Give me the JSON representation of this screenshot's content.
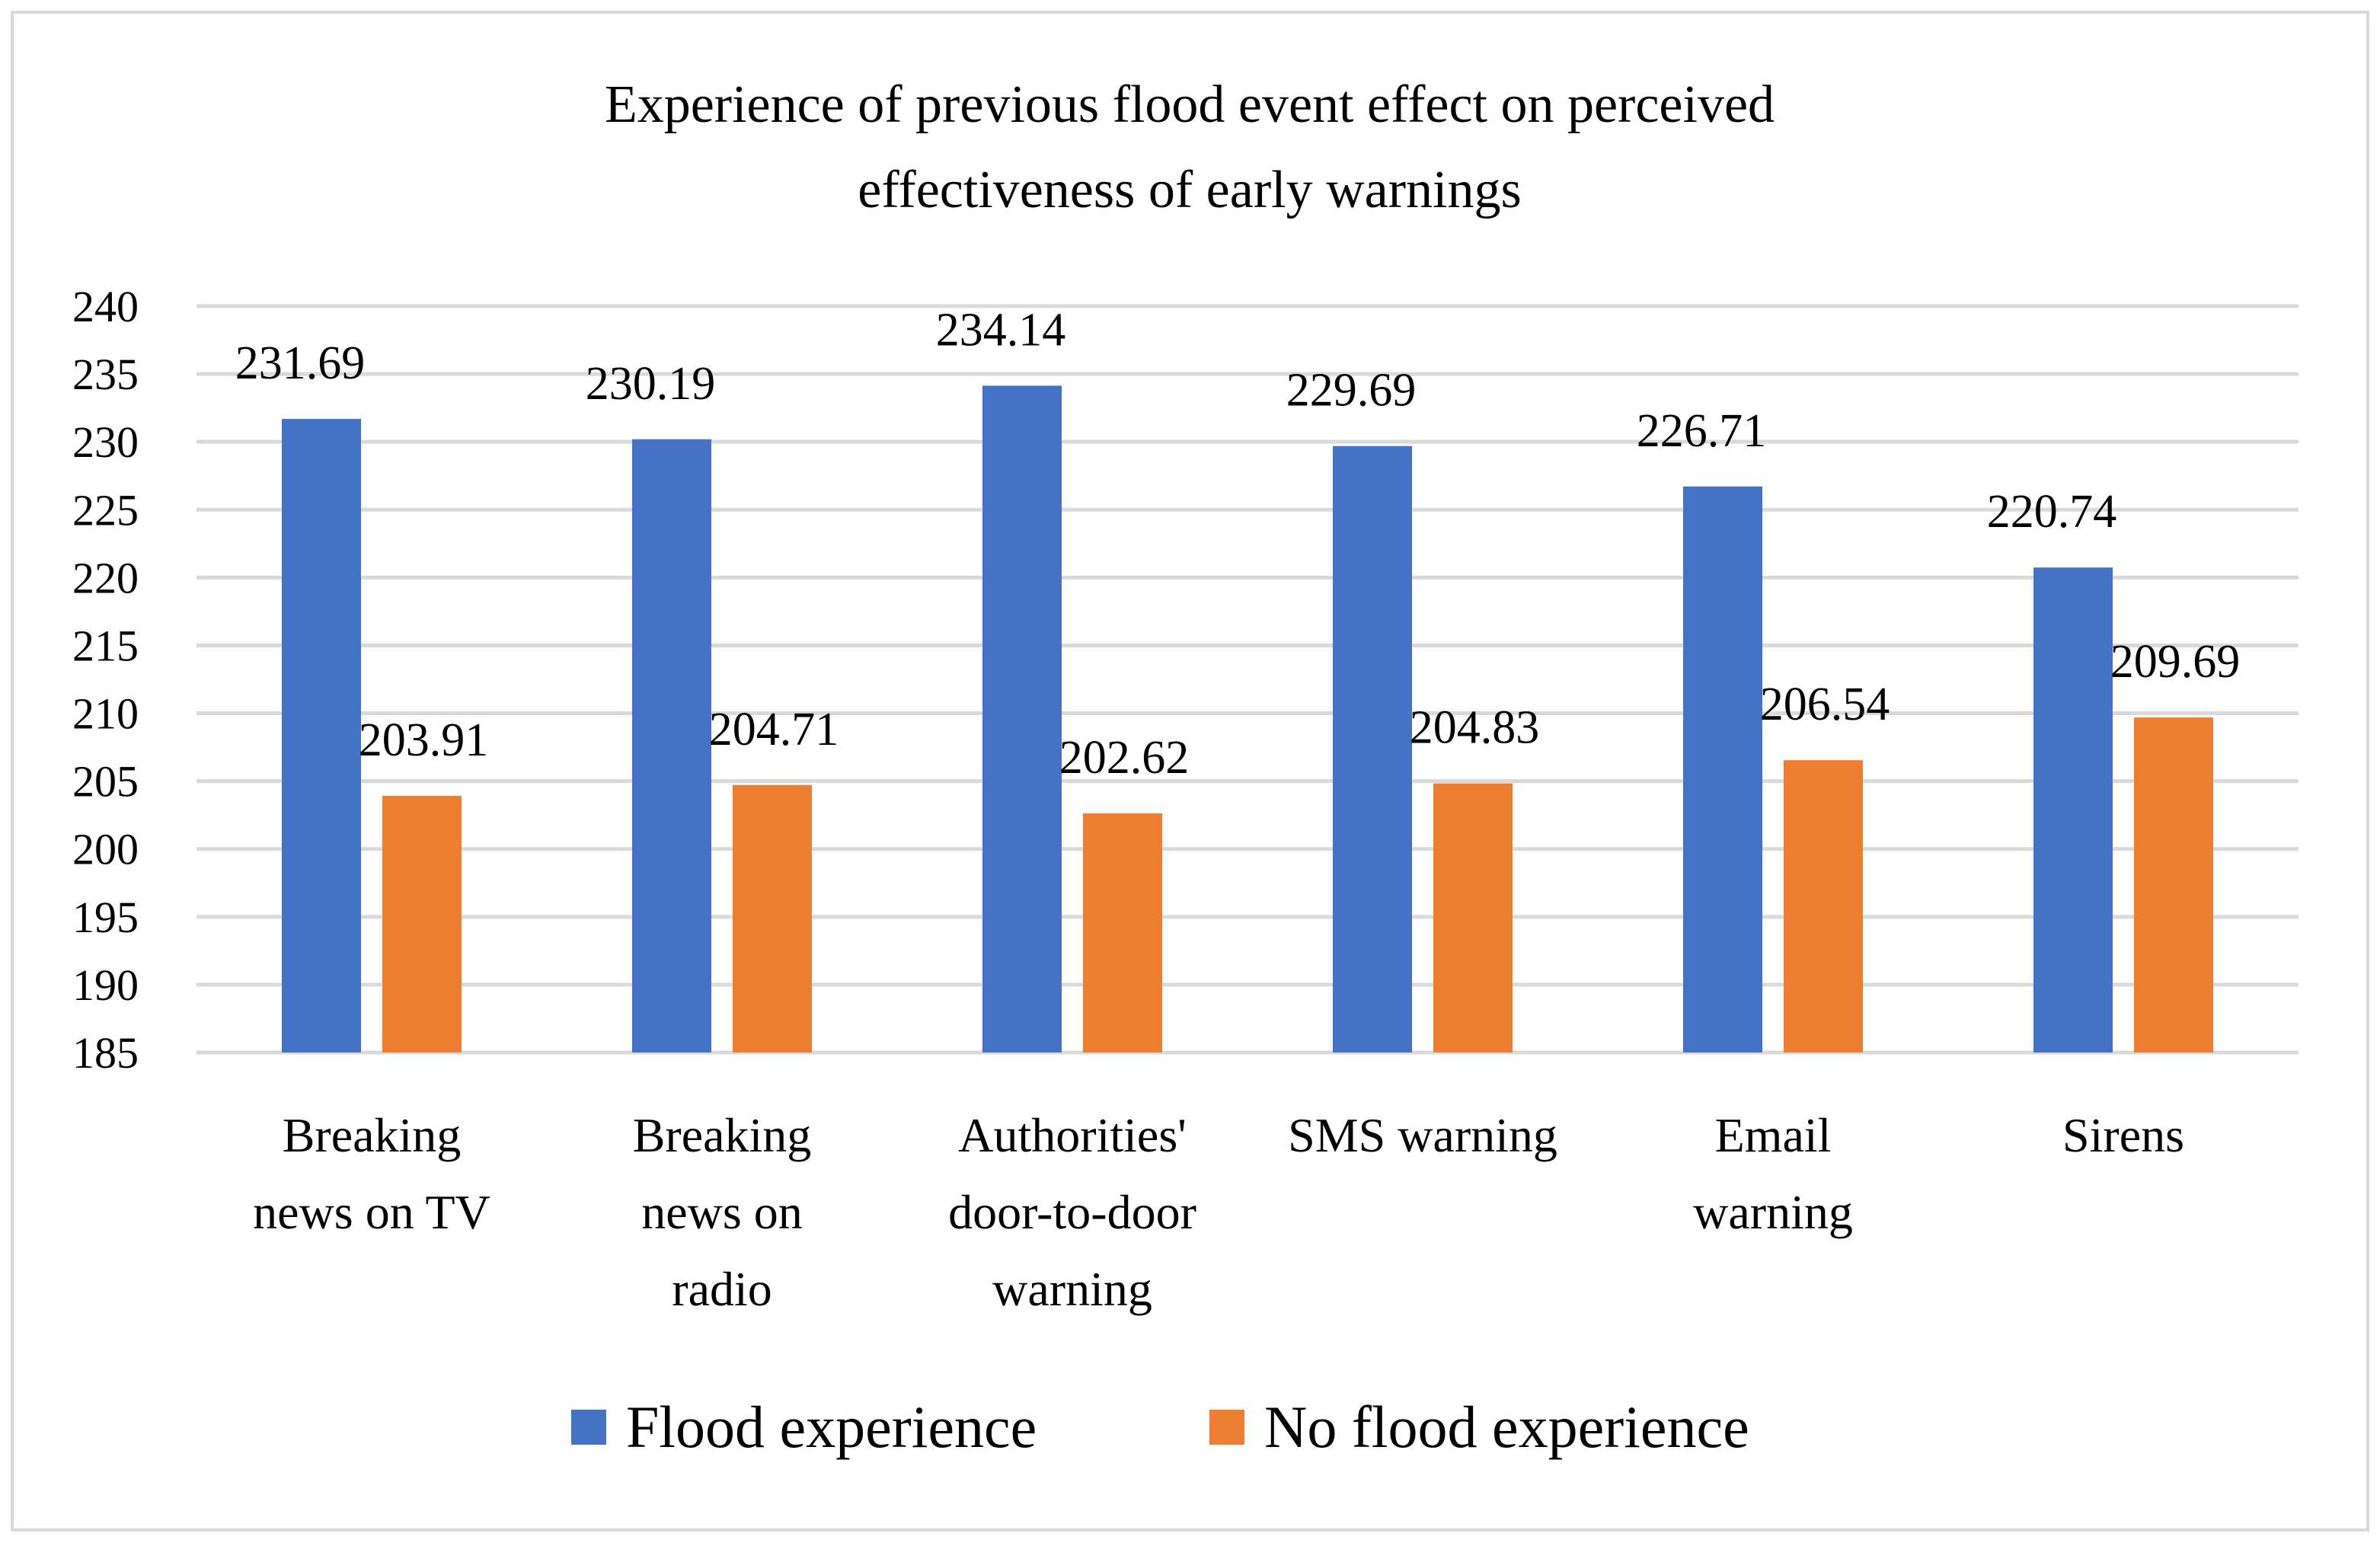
{
  "chart_data": {
    "type": "bar",
    "title_lines": [
      "Experience of previous flood event effect on perceived",
      "effectiveness of early warnings"
    ],
    "categories": [
      [
        "Breaking",
        "news on TV"
      ],
      [
        "Breaking",
        "news on",
        "radio"
      ],
      [
        "Authorities'",
        "door-to-door",
        "warning"
      ],
      [
        "SMS warning"
      ],
      [
        "Email",
        "warning"
      ],
      [
        "Sirens"
      ]
    ],
    "series": [
      {
        "name": "Flood experience",
        "color": "#4472C4",
        "values": [
          231.69,
          230.19,
          234.14,
          229.69,
          226.71,
          220.74
        ],
        "labels": [
          "231.69",
          "230.19",
          "234.14",
          "229.69",
          "226.71",
          "220.74"
        ]
      },
      {
        "name": "No flood experience",
        "color": "#ED7D31",
        "values": [
          203.91,
          204.71,
          202.62,
          204.83,
          206.54,
          209.69
        ],
        "labels": [
          "203.91",
          "204.71",
          "202.62",
          "204.83",
          "206.54",
          "209.69"
        ]
      }
    ],
    "ylim": [
      185,
      240
    ],
    "yticks": [
      "185",
      "190",
      "195",
      "200",
      "205",
      "210",
      "215",
      "220",
      "225",
      "230",
      "235",
      "240"
    ],
    "grid": true,
    "legend_position": "bottom",
    "gridline_color": "#D9D9D9",
    "frame_color": "#D9D9D9"
  }
}
